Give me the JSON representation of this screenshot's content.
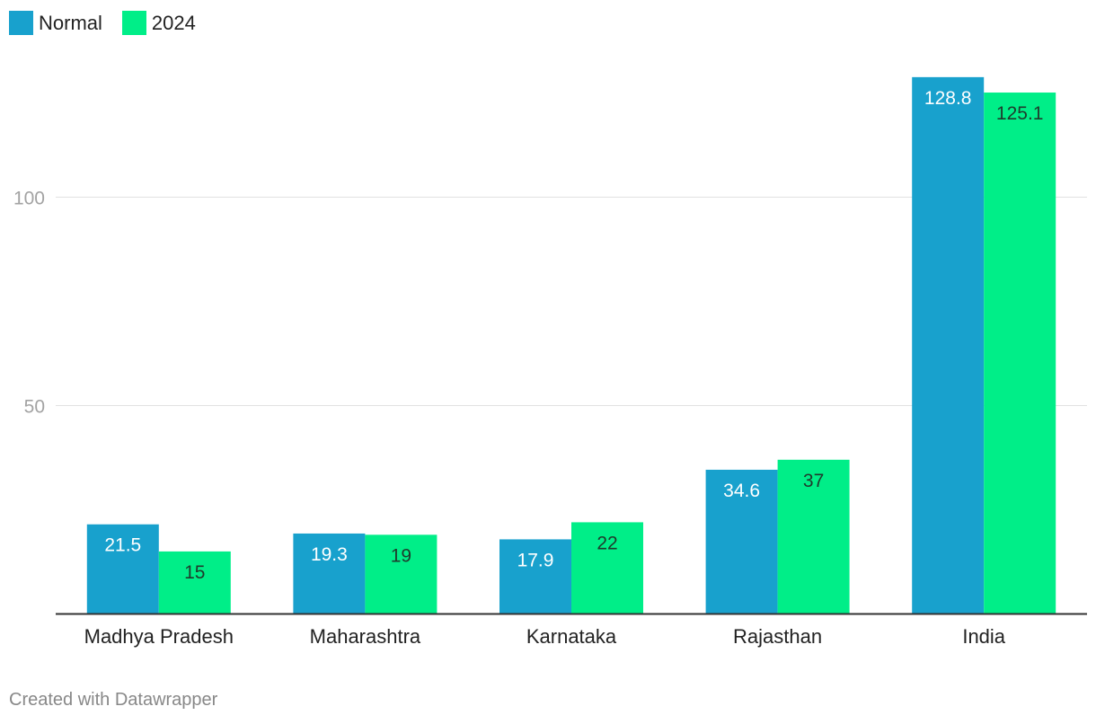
{
  "chart_data": {
    "type": "bar",
    "title": "",
    "xlabel": "",
    "ylabel": "",
    "categories": [
      "Madhya Pradesh",
      "Maharashtra",
      "Karnataka",
      "Rajasthan",
      "India"
    ],
    "series": [
      {
        "name": "Normal",
        "color": "#18a1cd",
        "values": [
          21.5,
          19.3,
          17.9,
          34.6,
          128.8
        ],
        "labels": [
          "21.5",
          "19.3",
          "17.9",
          "34.6",
          "128.8"
        ]
      },
      {
        "name": "2024",
        "color": "#00ee88",
        "values": [
          15,
          19,
          22,
          37,
          125.1
        ],
        "labels": [
          "15",
          "19",
          "22",
          "37",
          "125.1"
        ]
      }
    ],
    "yticks": [
      50,
      100
    ],
    "ytick_labels": [
      "50",
      "100"
    ],
    "ylim": [
      0,
      130
    ],
    "grid": true,
    "legend_position": "top-left"
  },
  "footer": {
    "credit": "Created with Datawrapper"
  }
}
